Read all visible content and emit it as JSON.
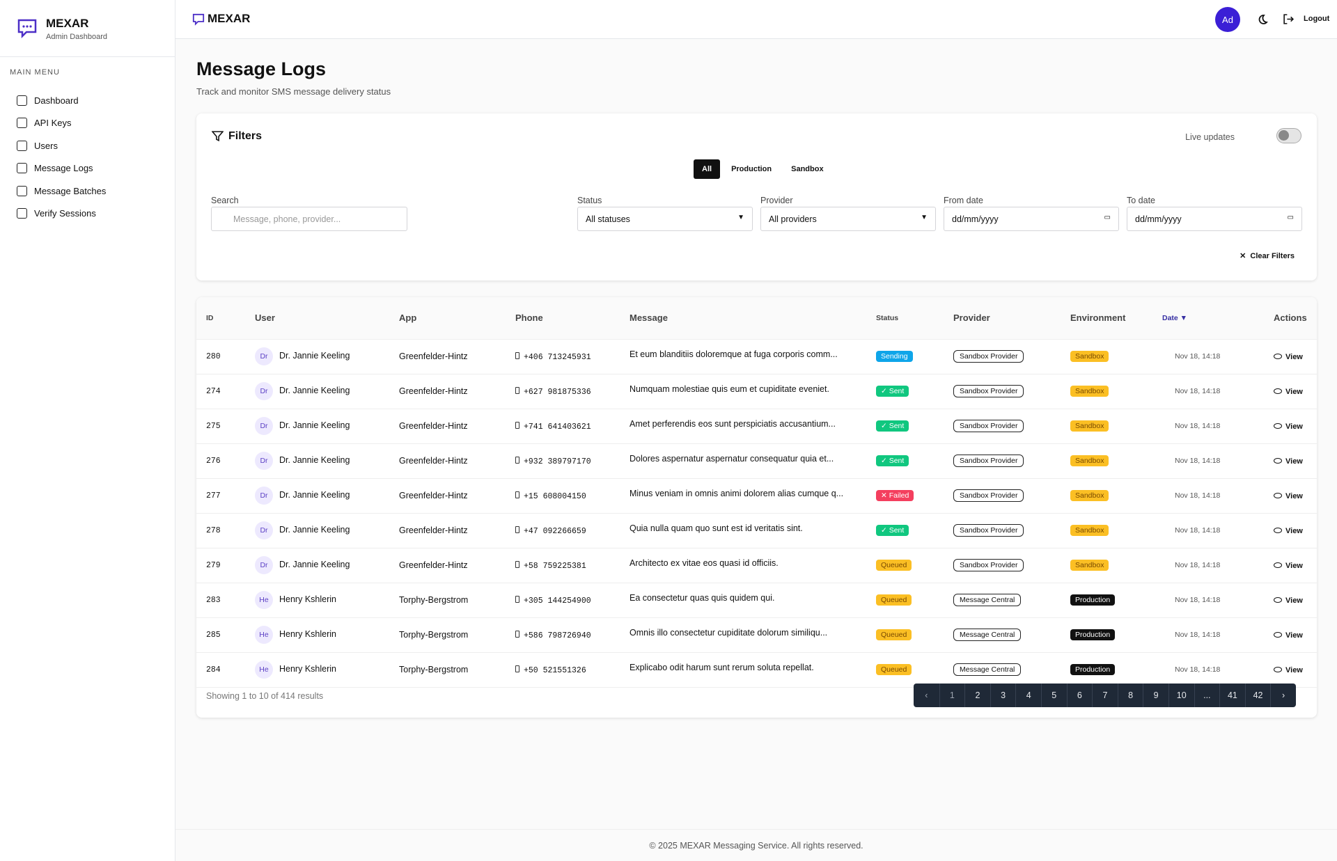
{
  "sidebar": {
    "brand": "MEXAR",
    "subtitle": "Admin Dashboard",
    "section": "MAIN MENU",
    "menu": [
      "Dashboard",
      "API Keys",
      "Users",
      "Message Logs",
      "Message Batches",
      "Verify Sessions"
    ]
  },
  "header": {
    "brand": "MEXAR",
    "avatar": "Ad",
    "logout": "Logout"
  },
  "page": {
    "title": "Message Logs",
    "subtitle": "Track and monitor SMS message delivery status"
  },
  "filters": {
    "title": "Filters",
    "live": "Live updates",
    "tabs": [
      "All",
      "Production",
      "Sandbox"
    ],
    "search": {
      "label": "Search",
      "placeholder": "Message, phone, provider..."
    },
    "selects": [
      {
        "label": "Status",
        "value": "All statuses"
      },
      {
        "label": "Provider",
        "value": "All providers"
      },
      {
        "label": "From date",
        "value": "dd/mm/yyyy"
      },
      {
        "label": "To date",
        "value": "dd/mm/yyyy"
      }
    ],
    "clear": "Clear Filters"
  },
  "table": {
    "columns": [
      "ID",
      "User",
      "App",
      "Phone",
      "Message",
      "Status",
      "Provider",
      "Environment",
      "Date ▼",
      "Actions"
    ],
    "rows": [
      {
        "id": 280,
        "initials": "Dr",
        "user": "Dr. Jannie Keeling",
        "app": "Greenfelder-Hintz",
        "phone": "+406 713245931",
        "message": "Et eum blanditiis doloremque at fuga corporis comm...",
        "status": {
          "label": "Sending",
          "color": "#0ea5e9"
        },
        "provider": "Sandbox Provider",
        "env": {
          "label": "Sandbox",
          "color": "#fbbf24"
        },
        "date": "Nov 18, 14:18",
        "action": "View"
      },
      {
        "id": 274,
        "initials": "Dr",
        "user": "Dr. Jannie Keeling",
        "app": "Greenfelder-Hintz",
        "phone": "+627 981875336",
        "message": "Numquam molestiae quis eum et cupiditate eveniet.",
        "status": {
          "label": "✓ Sent",
          "color": "#10c77f"
        },
        "provider": "Sandbox Provider",
        "env": {
          "label": "Sandbox",
          "color": "#fbbf24"
        },
        "date": "Nov 18, 14:18",
        "action": "View"
      },
      {
        "id": 275,
        "initials": "Dr",
        "user": "Dr. Jannie Keeling",
        "app": "Greenfelder-Hintz",
        "phone": "+741 641403621",
        "message": "Amet perferendis eos sunt perspiciatis accusantium...",
        "status": {
          "label": "✓ Sent",
          "color": "#10c77f"
        },
        "provider": "Sandbox Provider",
        "env": {
          "label": "Sandbox",
          "color": "#fbbf24"
        },
        "date": "Nov 18, 14:18",
        "action": "View"
      },
      {
        "id": 276,
        "initials": "Dr",
        "user": "Dr. Jannie Keeling",
        "app": "Greenfelder-Hintz",
        "phone": "+932 389797170",
        "message": "Dolores aspernatur aspernatur consequatur quia et...",
        "status": {
          "label": "✓ Sent",
          "color": "#10c77f"
        },
        "provider": "Sandbox Provider",
        "env": {
          "label": "Sandbox",
          "color": "#fbbf24"
        },
        "date": "Nov 18, 14:18",
        "action": "View"
      },
      {
        "id": 277,
        "initials": "Dr",
        "user": "Dr. Jannie Keeling",
        "app": "Greenfelder-Hintz",
        "phone": "+15 608004150",
        "message": "Minus veniam in omnis animi dolorem alias cumque q...",
        "status": {
          "label": "✕ Failed",
          "color": "#f43f5e"
        },
        "provider": "Sandbox Provider",
        "env": {
          "label": "Sandbox",
          "color": "#fbbf24"
        },
        "date": "Nov 18, 14:18",
        "action": "View"
      },
      {
        "id": 278,
        "initials": "Dr",
        "user": "Dr. Jannie Keeling",
        "app": "Greenfelder-Hintz",
        "phone": "+47 092266659",
        "message": "Quia nulla quam quo sunt est id veritatis sint.",
        "status": {
          "label": "✓ Sent",
          "color": "#10c77f"
        },
        "provider": "Sandbox Provider",
        "env": {
          "label": "Sandbox",
          "color": "#fbbf24"
        },
        "date": "Nov 18, 14:18",
        "action": "View"
      },
      {
        "id": 279,
        "initials": "Dr",
        "user": "Dr. Jannie Keeling",
        "app": "Greenfelder-Hintz",
        "phone": "+58 759225381",
        "message": "Architecto ex vitae eos quasi id officiis.",
        "status": {
          "label": "Queued",
          "color": "#fbbf24"
        },
        "provider": "Sandbox Provider",
        "env": {
          "label": "Sandbox",
          "color": "#fbbf24"
        },
        "date": "Nov 18, 14:18",
        "action": "View"
      },
      {
        "id": 283,
        "initials": "He",
        "user": "Henry Kshlerin",
        "app": "Torphy-Bergstrom",
        "phone": "+305 144254900",
        "message": "Ea consectetur quas quis quidem qui.",
        "status": {
          "label": "Queued",
          "color": "#fbbf24"
        },
        "provider": "Message Central",
        "env": {
          "label": "Production",
          "color": "#111111"
        },
        "date": "Nov 18, 14:18",
        "action": "View"
      },
      {
        "id": 285,
        "initials": "He",
        "user": "Henry Kshlerin",
        "app": "Torphy-Bergstrom",
        "phone": "+586 798726940",
        "message": "Omnis illo consectetur cupiditate dolorum similiqu...",
        "status": {
          "label": "Queued",
          "color": "#fbbf24"
        },
        "provider": "Message Central",
        "env": {
          "label": "Production",
          "color": "#111111"
        },
        "date": "Nov 18, 14:18",
        "action": "View"
      },
      {
        "id": 284,
        "initials": "He",
        "user": "Henry Kshlerin",
        "app": "Torphy-Bergstrom",
        "phone": "+50 521551326",
        "message": "Explicabo odit harum sunt rerum soluta repellat.",
        "status": {
          "label": "Queued",
          "color": "#fbbf24"
        },
        "provider": "Message Central",
        "env": {
          "label": "Production",
          "color": "#111111"
        },
        "date": "Nov 18, 14:18",
        "action": "View"
      }
    ]
  },
  "pagination": {
    "summary": "Showing 1 to 10 of 414 results",
    "pages": [
      1,
      2,
      3,
      4,
      5,
      6,
      7,
      8,
      9,
      10,
      "...",
      41,
      42
    ]
  },
  "footer": "© 2025 MEXAR Messaging Service. All rights reserved."
}
